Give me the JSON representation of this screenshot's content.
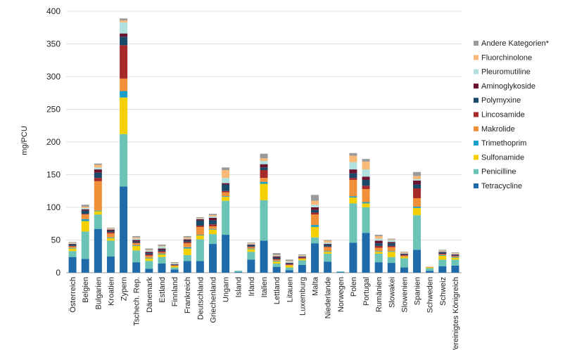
{
  "chart_data": {
    "type": "bar",
    "stacked": true,
    "ylabel": "mg/PCU",
    "ylim": [
      0,
      400
    ],
    "yticks": [
      0,
      50,
      100,
      150,
      200,
      250,
      300,
      350,
      400
    ],
    "grid": true,
    "legend_position": "right",
    "categories": [
      "Österreich",
      "Belgien",
      "Bulgarien",
      "Kroatien",
      "Zypern",
      "Tschech. Rep.",
      "Dänemark",
      "Estland",
      "Finnland",
      "Frankreich",
      "Deutschland",
      "Griechenland",
      "Ungarn",
      "Island",
      "Irland",
      "Italien",
      "Lettland",
      "Litauen",
      "Luxemburg",
      "Malta",
      "Niederlande",
      "Norwegen",
      "Polen",
      "Portugal",
      "Rumänien",
      "Slowakei",
      "Slowenien",
      "Spanien",
      "Schweden",
      "Schweiz",
      "Vereinigtes Königreich"
    ],
    "series": [
      {
        "name": "Tetracycline",
        "color": "#1f6aa8",
        "values": [
          24,
          21,
          67,
          25,
          132,
          16,
          6,
          14,
          5,
          18,
          18,
          44,
          58,
          1,
          20,
          49,
          9,
          4,
          12,
          45,
          17,
          1,
          46,
          61,
          16,
          15,
          8,
          35,
          3,
          10,
          11
        ]
      },
      {
        "name": "Penicilline",
        "color": "#6bc4b6",
        "values": [
          9,
          42,
          22,
          24,
          80,
          18,
          12,
          10,
          3,
          9,
          33,
          15,
          52,
          2,
          12,
          62,
          5,
          4,
          7,
          9,
          12,
          1,
          60,
          39,
          13,
          9,
          14,
          53,
          4,
          10,
          9
        ]
      },
      {
        "name": "Sulfonamide",
        "color": "#f5d000",
        "values": [
          4,
          16,
          5,
          4,
          56,
          7,
          4,
          4,
          2,
          10,
          6,
          7,
          6,
          0,
          4,
          25,
          3,
          3,
          2,
          16,
          3,
          0,
          9,
          6,
          3,
          8,
          2,
          11,
          1,
          6,
          3
        ]
      },
      {
        "name": "Trimethoprim",
        "color": "#1aa0c8",
        "values": [
          1,
          3,
          1,
          1,
          10,
          1,
          1,
          1,
          0,
          2,
          1,
          1,
          1,
          0,
          1,
          3,
          1,
          0,
          0,
          3,
          1,
          0,
          2,
          2,
          1,
          1,
          0,
          2,
          0,
          1,
          1
        ]
      },
      {
        "name": "Makrolide",
        "color": "#f0913a",
        "values": [
          2,
          7,
          45,
          6,
          19,
          3,
          3,
          2,
          1,
          6,
          12,
          4,
          6,
          0,
          2,
          6,
          2,
          1,
          1,
          16,
          6,
          0,
          25,
          20,
          5,
          6,
          2,
          13,
          1,
          1,
          1
        ]
      },
      {
        "name": "Lincosamide",
        "color": "#a62a2a",
        "values": [
          1,
          1,
          5,
          2,
          51,
          1,
          2,
          2,
          1,
          2,
          2,
          3,
          2,
          0,
          1,
          12,
          1,
          1,
          1,
          3,
          1,
          0,
          3,
          5,
          3,
          2,
          1,
          15,
          0,
          1,
          1
        ]
      },
      {
        "name": "Polymyxine",
        "color": "#1a4a6a",
        "values": [
          2,
          5,
          8,
          2,
          13,
          2,
          2,
          2,
          1,
          2,
          8,
          6,
          10,
          0,
          2,
          4,
          2,
          1,
          1,
          4,
          3,
          0,
          7,
          9,
          4,
          4,
          1,
          6,
          0,
          2,
          1
        ]
      },
      {
        "name": "Aminoglykoside",
        "color": "#6a1430",
        "values": [
          1,
          2,
          5,
          2,
          5,
          2,
          2,
          2,
          0,
          2,
          2,
          4,
          2,
          0,
          1,
          5,
          2,
          1,
          1,
          4,
          1,
          0,
          6,
          5,
          4,
          2,
          1,
          6,
          0,
          1,
          1
        ]
      },
      {
        "name": "Pleuromutiline",
        "color": "#b0e0e0",
        "values": [
          1,
          2,
          3,
          1,
          17,
          2,
          2,
          3,
          1,
          1,
          1,
          2,
          8,
          0,
          1,
          5,
          1,
          2,
          1,
          4,
          2,
          0,
          11,
          11,
          3,
          3,
          1,
          2,
          0,
          1,
          1
        ]
      },
      {
        "name": "Fluorchinolone",
        "color": "#f8b878",
        "values": [
          1,
          2,
          4,
          1,
          3,
          2,
          1,
          1,
          1,
          2,
          1,
          2,
          12,
          0,
          1,
          4,
          1,
          1,
          1,
          6,
          3,
          0,
          10,
          12,
          4,
          1,
          1,
          5,
          0,
          1,
          1
        ]
      },
      {
        "name": "Andere Kategorien*",
        "color": "#9a9a9a",
        "values": [
          1,
          3,
          2,
          1,
          3,
          2,
          2,
          2,
          1,
          2,
          1,
          2,
          4,
          0,
          1,
          7,
          3,
          2,
          1,
          9,
          1,
          0,
          4,
          4,
          2,
          1,
          1,
          6,
          0,
          1,
          1
        ]
      }
    ],
    "legend_order": [
      "Andere Kategorien*",
      "Fluorchinolone",
      "Pleuromutiline",
      "Aminoglykoside",
      "Polymyxine",
      "Lincosamide",
      "Makrolide",
      "Trimethoprim",
      "Sulfonamide",
      "Penicilline",
      "Tetracycline"
    ]
  }
}
